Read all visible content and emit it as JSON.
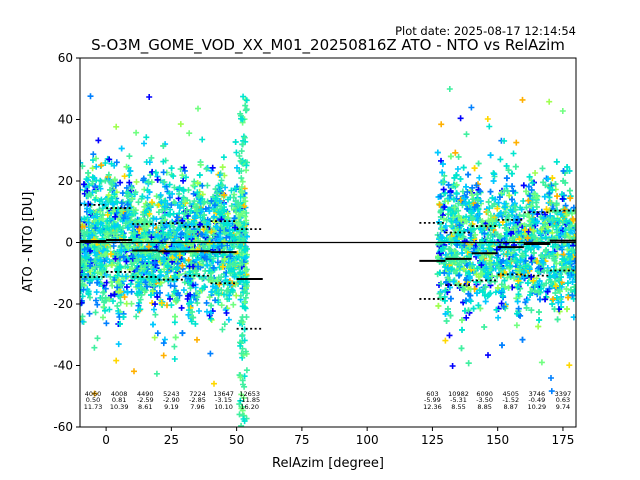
{
  "header": {
    "plot_date": "Plot date: 2025-08-17 12:14:54"
  },
  "chart_data": {
    "type": "scatter",
    "title": "S-O3M_GOME_VOD_XX_M01_20250816Z ATO - NTO vs RelAzim",
    "xlabel": "RelAzim [degree]",
    "ylabel": "ATO - NTO [DU]",
    "xlim": [
      -10,
      180
    ],
    "ylim": [
      -60,
      60
    ],
    "x_ticks": [
      0,
      25,
      50,
      75,
      100,
      125,
      150,
      175
    ],
    "y_ticks": [
      -60,
      -40,
      -20,
      0,
      20,
      40,
      60
    ],
    "grid": false,
    "zero_line": 0,
    "colors": [
      "#0000ff",
      "#0080ff",
      "#00c8ff",
      "#00e5d0",
      "#40f0a0",
      "#70ff80",
      "#a0ff50",
      "#ffd700",
      "#ffb000"
    ],
    "clusters": [
      {
        "x_range": [
          -10,
          54
        ],
        "y_center": 0,
        "y_spread": [
          -38,
          40
        ]
      },
      {
        "x_range": [
          127,
          180
        ],
        "y_center": 0,
        "y_spread": [
          -42,
          30
        ]
      }
    ],
    "bins": [
      {
        "x_start": -10,
        "x_end": 0,
        "count": "4060",
        "mean": "0.50",
        "std": "11.73"
      },
      {
        "x_start": 0,
        "x_end": 10,
        "count": "4008",
        "mean": "0.81",
        "std": "10.39"
      },
      {
        "x_start": 10,
        "x_end": 20,
        "count": "4490",
        "mean": "-2.59",
        "std": "8.61"
      },
      {
        "x_start": 20,
        "x_end": 30,
        "count": "5243",
        "mean": "-2.90",
        "std": "9.19"
      },
      {
        "x_start": 30,
        "x_end": 40,
        "count": "7224",
        "mean": "-2.85",
        "std": "7.96"
      },
      {
        "x_start": 40,
        "x_end": 50,
        "count": "13647",
        "mean": "-3.15",
        "std": "10.10"
      },
      {
        "x_start": 50,
        "x_end": 60,
        "count": "12653",
        "mean": "-11.85",
        "std": "16.20"
      },
      {
        "x_start": 120,
        "x_end": 130,
        "count": "603",
        "mean": "-5.99",
        "std": "12.36"
      },
      {
        "x_start": 130,
        "x_end": 140,
        "count": "10982",
        "mean": "-5.31",
        "std": "8.55"
      },
      {
        "x_start": 140,
        "x_end": 150,
        "count": "6090",
        "mean": "-3.50",
        "std": "8.85"
      },
      {
        "x_start": 150,
        "x_end": 160,
        "count": "4505",
        "mean": "-1.52",
        "std": "8.87"
      },
      {
        "x_start": 160,
        "x_end": 170,
        "count": "3746",
        "mean": "-0.49",
        "std": "10.29"
      },
      {
        "x_start": 170,
        "x_end": 180,
        "count": "3397",
        "mean": "0.63",
        "std": "9.74"
      }
    ]
  }
}
